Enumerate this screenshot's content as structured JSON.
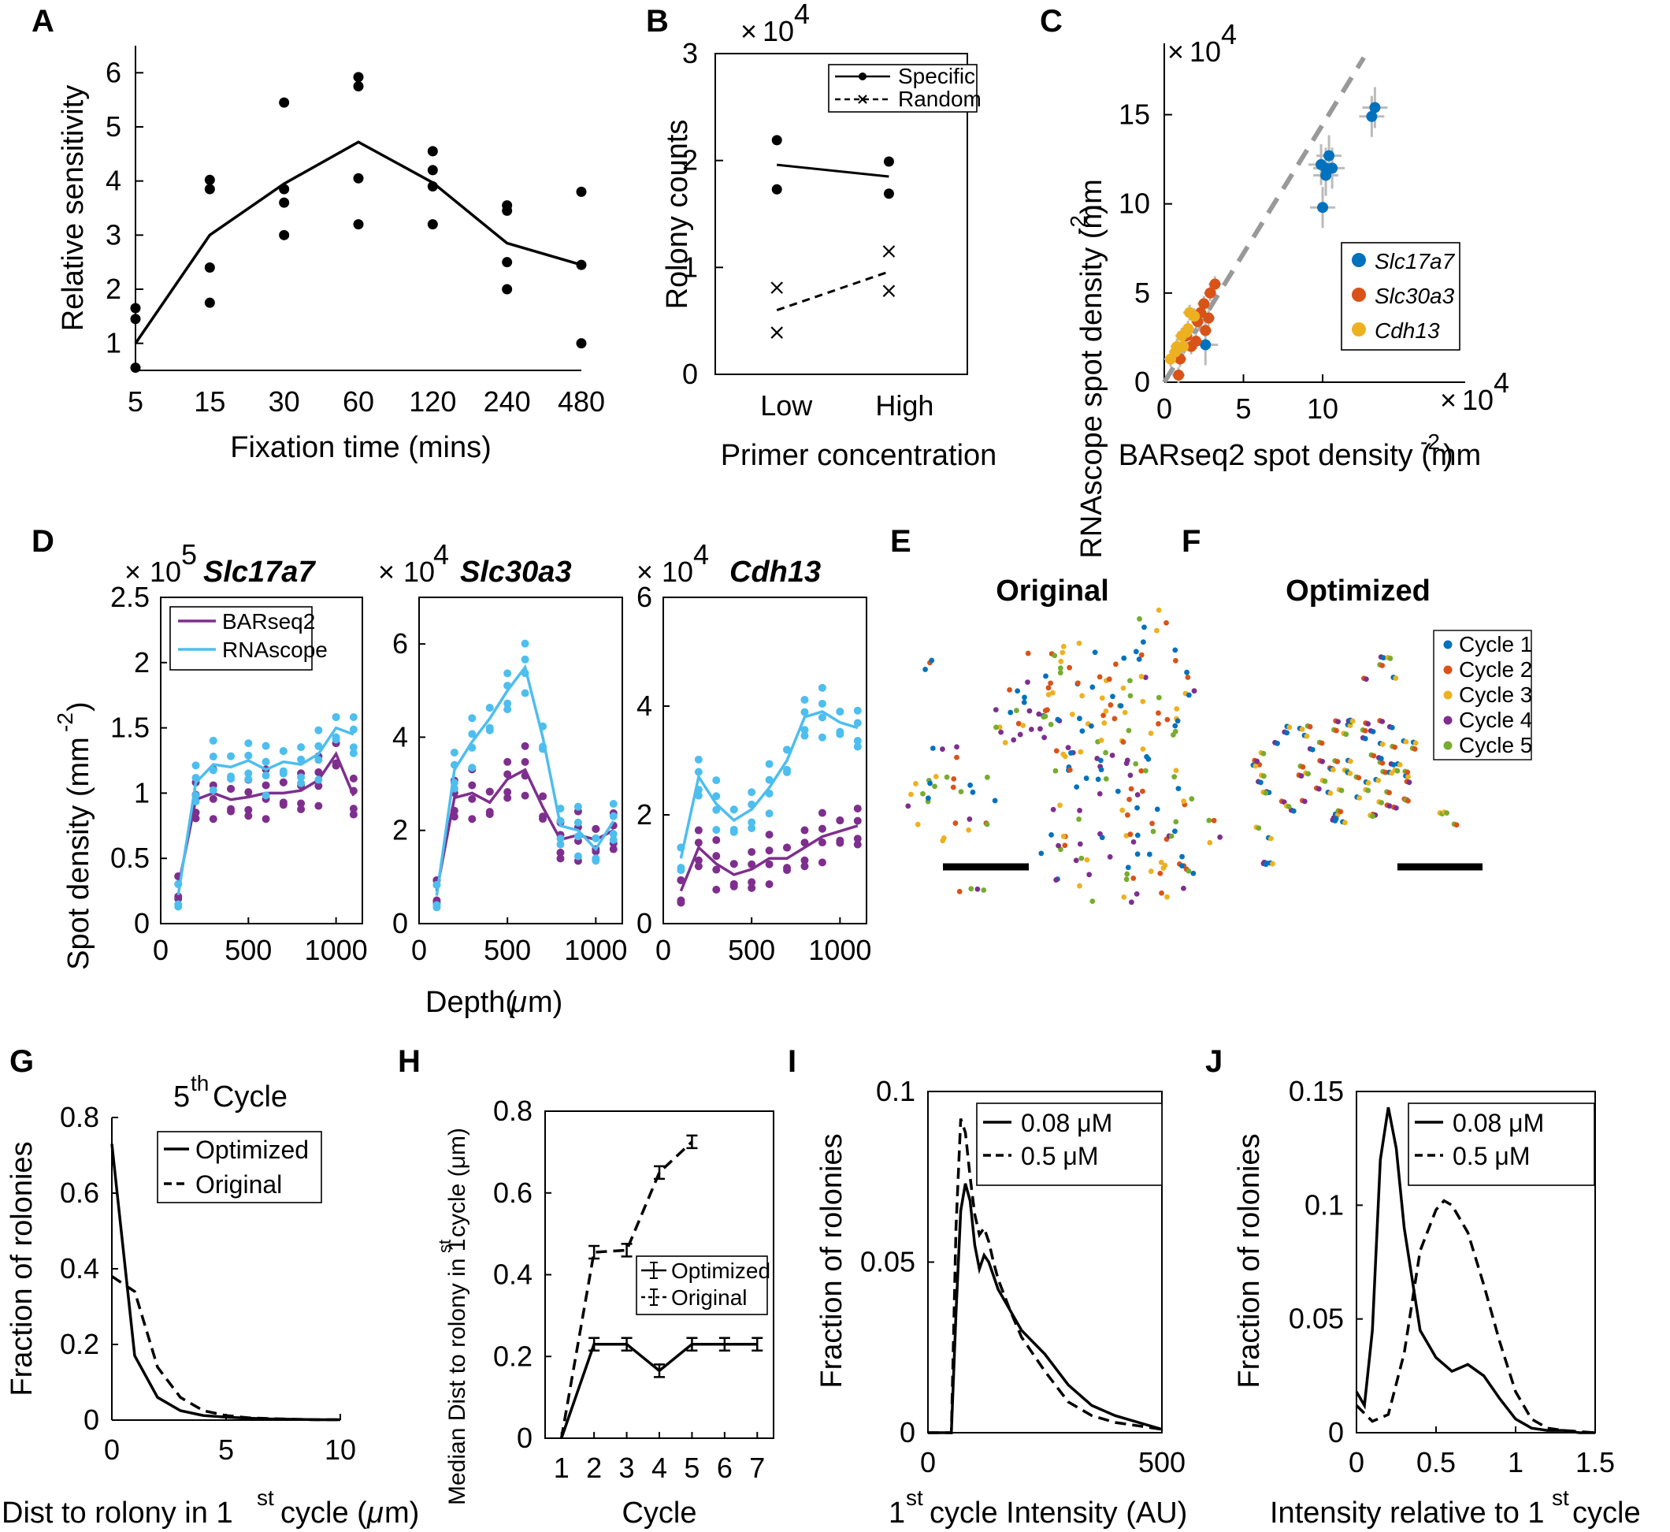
{
  "panel_labels": [
    "A",
    "B",
    "C",
    "D",
    "E",
    "F",
    "G",
    "H",
    "I",
    "J"
  ],
  "chart_data": [
    {
      "id": "A",
      "type": "scatter",
      "xlabel": "Fixation time (mins)",
      "ylabel": "Relative sensitivity",
      "x_categories": [
        "5",
        "15",
        "30",
        "60",
        "120",
        "240",
        "480"
      ],
      "yticks": [
        "1",
        "2",
        "3",
        "4",
        "5",
        "6"
      ],
      "ylim": [
        0.5,
        6.5
      ],
      "points": [
        [
          0,
          1.65
        ],
        [
          0,
          1.45
        ],
        [
          0,
          0.55
        ],
        [
          1,
          4.02
        ],
        [
          1,
          3.85
        ],
        [
          1,
          2.4
        ],
        [
          1,
          1.75
        ],
        [
          2,
          5.45
        ],
        [
          2,
          3.85
        ],
        [
          2,
          3.6
        ],
        [
          2,
          3.0
        ],
        [
          3,
          5.92
        ],
        [
          3,
          5.75
        ],
        [
          3,
          4.05
        ],
        [
          3,
          3.2
        ],
        [
          4,
          4.55
        ],
        [
          4,
          4.2
        ],
        [
          4,
          3.9
        ],
        [
          4,
          3.2
        ],
        [
          5,
          3.55
        ],
        [
          5,
          3.45
        ],
        [
          5,
          2.5
        ],
        [
          5,
          2.0
        ],
        [
          6,
          3.8
        ],
        [
          6,
          2.45
        ],
        [
          6,
          1.0
        ]
      ],
      "line": [
        [
          0,
          1.0
        ],
        [
          1,
          3.0
        ],
        [
          2,
          3.95
        ],
        [
          3,
          4.72
        ],
        [
          4,
          3.97
        ],
        [
          5,
          2.85
        ],
        [
          6,
          2.45
        ]
      ]
    },
    {
      "id": "B",
      "type": "scatter",
      "xlabel": "Primer concentration",
      "ylabel": "Rolony counts",
      "x_categories": [
        "Low",
        "High"
      ],
      "exponent": "4",
      "yticks": [
        "0",
        "1",
        "2",
        "3"
      ],
      "ylim": [
        0,
        3
      ],
      "series": [
        {
          "name": "Specific",
          "points": [
            [
              0,
              2.19
            ],
            [
              0,
              1.73
            ],
            [
              1,
              1.99
            ],
            [
              1,
              1.69
            ]
          ],
          "line": [
            [
              0,
              1.96
            ],
            [
              1,
              1.85
            ]
          ]
        },
        {
          "name": "Random",
          "points": [
            [
              0,
              0.81
            ],
            [
              0,
              0.39
            ],
            [
              1,
              1.15
            ],
            [
              1,
              0.78
            ]
          ],
          "line": [
            [
              0,
              0.6
            ],
            [
              1,
              0.96
            ]
          ]
        }
      ]
    },
    {
      "id": "C",
      "type": "scatter",
      "xlabel": "BARseq2 spot density (mm",
      "ylabel": "RNAscope spot density (mm",
      "unit_exp": "-2",
      "exponent": "4",
      "xticks": [
        "0",
        "5",
        "10"
      ],
      "yticks": [
        "0",
        "5",
        "10",
        "15"
      ],
      "lim": [
        0,
        19
      ],
      "series": [
        {
          "name": "Slc17a7",
          "color": "#0072BD",
          "points": [
            [
              9.9,
              12.2
            ],
            [
              10.2,
              12.0
            ],
            [
              10.4,
              12.7
            ],
            [
              10.2,
              11.6
            ],
            [
              10.6,
              12.0
            ],
            [
              10.0,
              9.8
            ],
            [
              13.3,
              15.4
            ],
            [
              13.1,
              14.9
            ],
            [
              2.6,
              2.1
            ]
          ]
        },
        {
          "name": "Slc30a3",
          "color": "#D95319",
          "points": [
            [
              3.2,
              5.5
            ],
            [
              2.9,
              5.0
            ],
            [
              2.5,
              4.4
            ],
            [
              2.3,
              3.9
            ],
            [
              2.8,
              3.6
            ],
            [
              2.6,
              2.9
            ],
            [
              2.0,
              2.3
            ],
            [
              1.7,
              2.0
            ],
            [
              1.4,
              2.6
            ],
            [
              1.0,
              1.3
            ],
            [
              0.9,
              0.4
            ],
            [
              2.1,
              3.4
            ]
          ]
        },
        {
          "name": "Cdh13",
          "color": "#EDB120",
          "points": [
            [
              0.4,
              1.3
            ],
            [
              0.8,
              2.0
            ],
            [
              1.1,
              2.6
            ],
            [
              1.4,
              2.8
            ],
            [
              1.6,
              3.9
            ],
            [
              1.9,
              3.7
            ],
            [
              1.2,
              2.0
            ],
            [
              0.7,
              1.7
            ],
            [
              1.5,
              3.0
            ]
          ]
        }
      ]
    },
    {
      "id": "D1",
      "type": "line",
      "title": "Slc17a7",
      "exponent": "5",
      "xticks": [
        "0",
        "500",
        "1000"
      ],
      "yticks": [
        "0",
        "0.5",
        "1",
        "1.5",
        "2",
        "2.5"
      ],
      "ylim": [
        0,
        2.5
      ],
      "xlim": [
        0,
        1150
      ],
      "series": [
        {
          "name": "BARseq2",
          "color": "#7E2F8E",
          "x": [
            100,
            200,
            300,
            400,
            500,
            600,
            700,
            800,
            900,
            1000,
            1100
          ],
          "values": [
            0.28,
            0.95,
            1.0,
            0.95,
            0.97,
            1.0,
            1.0,
            1.02,
            1.1,
            1.3,
            0.98
          ]
        },
        {
          "name": "RNAscope",
          "color": "#4DBEEE",
          "x": [
            100,
            200,
            300,
            400,
            500,
            600,
            700,
            800,
            900,
            1000,
            1100
          ],
          "values": [
            0.22,
            1.08,
            1.22,
            1.2,
            1.25,
            1.18,
            1.24,
            1.22,
            1.3,
            1.5,
            1.45
          ]
        }
      ]
    },
    {
      "id": "D2",
      "type": "line",
      "title": "Slc30a3",
      "exponent": "4",
      "xticks": [
        "0",
        "500",
        "1000"
      ],
      "yticks": [
        "0",
        "2",
        "4",
        "6"
      ],
      "ylim": [
        0,
        7
      ],
      "xlim": [
        0,
        1150
      ],
      "series": [
        {
          "name": "BARseq2",
          "color": "#7E2F8E",
          "x": [
            100,
            200,
            300,
            400,
            500,
            600,
            700,
            800,
            900,
            1000,
            1100
          ],
          "values": [
            0.7,
            2.7,
            2.8,
            2.6,
            3.1,
            3.3,
            2.5,
            1.8,
            1.9,
            1.8,
            2.0
          ]
        },
        {
          "name": "RNAscope",
          "color": "#4DBEEE",
          "x": [
            100,
            200,
            300,
            400,
            500,
            600,
            700,
            800,
            900,
            1000,
            1100
          ],
          "values": [
            0.6,
            3.3,
            3.9,
            4.4,
            5.0,
            5.5,
            4.0,
            2.1,
            2.0,
            1.6,
            2.2
          ]
        }
      ]
    },
    {
      "id": "D3",
      "type": "line",
      "title": "Cdh13",
      "exponent": "4",
      "xticks": [
        "0",
        "500",
        "1000"
      ],
      "yticks": [
        "0",
        "2",
        "4",
        "6"
      ],
      "ylim": [
        0,
        6
      ],
      "xlim": [
        0,
        1150
      ],
      "series": [
        {
          "name": "BARseq2",
          "color": "#7E2F8E",
          "x": [
            100,
            200,
            300,
            400,
            500,
            600,
            700,
            800,
            900,
            1000,
            1100
          ],
          "values": [
            0.6,
            1.4,
            1.1,
            0.9,
            1.0,
            1.2,
            1.2,
            1.4,
            1.6,
            1.7,
            1.8
          ]
        },
        {
          "name": "RNAscope",
          "color": "#4DBEEE",
          "x": [
            100,
            200,
            300,
            400,
            500,
            600,
            700,
            800,
            900,
            1000,
            1100
          ],
          "values": [
            1.2,
            2.7,
            2.2,
            1.9,
            2.1,
            2.5,
            3.0,
            3.8,
            3.9,
            3.7,
            3.6
          ]
        }
      ]
    },
    {
      "id": "E",
      "type": "scatter",
      "title": "Original"
    },
    {
      "id": "F",
      "type": "scatter",
      "title": "Optimized",
      "legend": [
        "Cycle 1",
        "Cycle 2",
        "Cycle 3",
        "Cycle 4",
        "Cycle 5"
      ],
      "colors": [
        "#0072BD",
        "#D95319",
        "#EDB120",
        "#7E2F8E",
        "#77AC30"
      ]
    },
    {
      "id": "G",
      "type": "line",
      "title": "5",
      "title_sup": "th",
      "title_rest": " Cycle",
      "xlabel": "Dist to rolony in 1",
      "xlabel_sup": "st",
      "xlabel_rest": " cycle (",
      "xlabel_mu": "μ",
      "xlabel_end": "m)",
      "ylabel": "Fraction of rolonies",
      "xticks": [
        "0",
        "5",
        "10"
      ],
      "yticks": [
        "0",
        "0.2",
        "0.4",
        "0.6",
        "0.8"
      ],
      "xlim": [
        0,
        10
      ],
      "ylim": [
        0,
        0.8
      ],
      "series": [
        {
          "name": "Optimized",
          "style": "solid",
          "x": [
            0,
            1,
            2,
            3,
            4,
            5,
            6,
            7,
            8,
            9,
            10
          ],
          "values": [
            0.73,
            0.17,
            0.06,
            0.025,
            0.012,
            0.008,
            0.005,
            0.003,
            0.002,
            0.001,
            0.001
          ]
        },
        {
          "name": "Original",
          "style": "dashed",
          "x": [
            0,
            1,
            2,
            3,
            4,
            5,
            6,
            7,
            8,
            9,
            10
          ],
          "values": [
            0.38,
            0.34,
            0.14,
            0.06,
            0.025,
            0.012,
            0.006,
            0.004,
            0.002,
            0.001,
            0.001
          ]
        }
      ]
    },
    {
      "id": "H",
      "type": "line",
      "xlabel": "Cycle",
      "ylabel": "Median Dist to rolony in 1",
      "ylabel_sup": "st",
      "ylabel_rest": " cycle (μm)",
      "xticks": [
        "1",
        "2",
        "3",
        "4",
        "5",
        "6",
        "7"
      ],
      "yticks": [
        "0",
        "0.2",
        "0.4",
        "0.6",
        "0.8"
      ],
      "xlim": [
        0.5,
        7.5
      ],
      "ylim": [
        0,
        0.8
      ],
      "series": [
        {
          "name": "Optimized",
          "style": "solid",
          "x": [
            1,
            2,
            3,
            4,
            5,
            6,
            7
          ],
          "values": [
            0,
            0.23,
            0.23,
            0.165,
            0.23,
            0.23,
            0.23
          ]
        },
        {
          "name": "Original",
          "style": "dashed",
          "x": [
            1,
            2,
            3,
            4,
            5
          ],
          "values": [
            0,
            0.455,
            0.46,
            0.65,
            0.725
          ]
        }
      ]
    },
    {
      "id": "I",
      "type": "line",
      "xlabel": "cycle Intensity (AU)",
      "xlabel_pre": "1",
      "xlabel_sup": "st",
      "ylabel": "Fraction of rolonies",
      "xticks": [
        "0",
        "500"
      ],
      "yticks": [
        "0",
        "0.05",
        "0.1"
      ],
      "xlim": [
        0,
        500
      ],
      "ylim": [
        0,
        0.1
      ],
      "series": [
        {
          "name": "0.08 μM",
          "style": "solid",
          "x": [
            0,
            50,
            60,
            70,
            80,
            90,
            100,
            110,
            120,
            130,
            140,
            150,
            175,
            200,
            250,
            300,
            350,
            400,
            450,
            500
          ],
          "values": [
            0,
            0,
            0.035,
            0.065,
            0.073,
            0.068,
            0.055,
            0.048,
            0.052,
            0.05,
            0.046,
            0.042,
            0.036,
            0.03,
            0.023,
            0.014,
            0.008,
            0.005,
            0.003,
            0.001
          ]
        },
        {
          "name": "0.5 μM",
          "style": "dashed",
          "x": [
            0,
            50,
            60,
            70,
            80,
            90,
            100,
            110,
            120,
            130,
            140,
            150,
            175,
            200,
            250,
            300,
            350,
            400,
            450,
            500
          ],
          "values": [
            0,
            0,
            0.06,
            0.092,
            0.088,
            0.075,
            0.064,
            0.058,
            0.06,
            0.056,
            0.05,
            0.045,
            0.036,
            0.028,
            0.018,
            0.009,
            0.005,
            0.003,
            0.002,
            0.001
          ]
        }
      ]
    },
    {
      "id": "J",
      "type": "line",
      "xlabel": "Intensity relative to 1",
      "xlabel_sup": "st",
      "xlabel_rest": " cycle",
      "ylabel": "Fraction of rolonies",
      "xticks": [
        "0",
        "0.5",
        "1",
        "1.5"
      ],
      "yticks": [
        "0",
        "0.05",
        "0.1",
        "0.15"
      ],
      "xlim": [
        0,
        1.5
      ],
      "ylim": [
        0,
        0.15
      ],
      "series": [
        {
          "name": "0.08 μM",
          "style": "solid",
          "x": [
            0,
            0.05,
            0.1,
            0.15,
            0.2,
            0.25,
            0.3,
            0.4,
            0.5,
            0.6,
            0.7,
            0.8,
            0.9,
            1.0,
            1.1,
            1.2,
            1.3,
            1.4,
            1.5
          ],
          "values": [
            0.018,
            0.012,
            0.045,
            0.12,
            0.143,
            0.125,
            0.09,
            0.045,
            0.033,
            0.027,
            0.03,
            0.025,
            0.015,
            0.006,
            0.002,
            0.001,
            0.001,
            0,
            0
          ]
        },
        {
          "name": "0.5 μM",
          "style": "dashed",
          "x": [
            0,
            0.1,
            0.2,
            0.3,
            0.4,
            0.5,
            0.55,
            0.6,
            0.7,
            0.8,
            0.9,
            1.0,
            1.1,
            1.2,
            1.3,
            1.5
          ],
          "values": [
            0.012,
            0.005,
            0.008,
            0.035,
            0.08,
            0.098,
            0.102,
            0.1,
            0.088,
            0.065,
            0.04,
            0.018,
            0.006,
            0.002,
            0.001,
            0
          ]
        }
      ]
    }
  ],
  "common": {
    "d_ylabel": "Spot density (mm",
    "d_ylabel_exp": "-2",
    "d_xlabel": "Depth(",
    "d_xlabel_mu": "μ",
    "d_xlabel_end": "m)",
    "times": "×",
    "ten": "10",
    "close": ")"
  }
}
